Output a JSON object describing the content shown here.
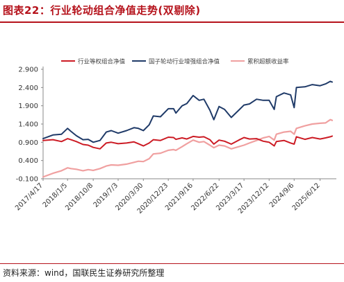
{
  "figure": {
    "title": "图表22：行业轮动组合净值走势(双剔除)",
    "source": "资料来源：wind，国联民生证券研究所整理"
  },
  "colors": {
    "title": "#b5121b",
    "rule": "#b5121b",
    "benchmark": "#cc1b24",
    "strategy": "#1f3a68",
    "excess": "#f0a0a0"
  },
  "chart_data": {
    "type": "line",
    "title": "",
    "xlabel": "",
    "ylabel": "",
    "ylim": [
      -0.1,
      2.9
    ],
    "yticks": [
      "-0.100",
      "0.400",
      "0.900",
      "1.400",
      "1.900",
      "2.400",
      "2.900"
    ],
    "grid": false,
    "legend_position": "top",
    "x_tick_labels": [
      "2017/4/17",
      "2018/1/5",
      "2018/10/8",
      "2019/7/3",
      "2020/3/30",
      "2020/12/23",
      "2021/9/16",
      "2022/6/22",
      "2023/3/17",
      "2023/12/12",
      "2024/9/6",
      "2025/6/12"
    ],
    "x": [
      "2017/4/17",
      "2017/8/1",
      "2017/11/1",
      "2018/1/5",
      "2018/2/10",
      "2018/4/10",
      "2018/6/20",
      "2018/8/15",
      "2018/10/8",
      "2018/12/20",
      "2019/2/25",
      "2019/4/20",
      "2019/7/3",
      "2019/10/1",
      "2019/12/20",
      "2020/2/5",
      "2020/3/30",
      "2020/6/1",
      "2020/7/15",
      "2020/9/30",
      "2020/12/23",
      "2021/2/18",
      "2021/3/15",
      "2021/5/20",
      "2021/7/10",
      "2021/9/16",
      "2021/11/20",
      "2022/1/10",
      "2022/3/15",
      "2022/4/27",
      "2022/6/22",
      "2022/8/20",
      "2022/10/31",
      "2023/1/20",
      "2023/3/17",
      "2023/5/15",
      "2023/7/30",
      "2023/10/10",
      "2023/12/12",
      "2024/2/5",
      "2024/2/28",
      "2024/5/20",
      "2024/7/30",
      "2024/9/6",
      "2024/9/30",
      "2024/12/31",
      "2025/3/20",
      "2025/6/12",
      "2025/8/10",
      "2025/9/30",
      "2025/10/20"
    ],
    "series": [
      {
        "name": "行业等权组合净值",
        "color": "#cc1b24",
        "values": [
          0.95,
          0.97,
          0.92,
          1.0,
          0.97,
          0.92,
          0.84,
          0.82,
          0.76,
          0.72,
          0.88,
          0.9,
          0.86,
          0.88,
          0.91,
          0.86,
          0.8,
          0.88,
          0.97,
          0.95,
          1.04,
          1.03,
          0.98,
          1.02,
          0.99,
          1.06,
          1.04,
          1.05,
          0.97,
          0.85,
          0.96,
          0.93,
          0.85,
          0.96,
          1.03,
          0.99,
          1.0,
          0.93,
          0.9,
          0.8,
          0.92,
          0.95,
          0.88,
          0.85,
          1.05,
          0.98,
          1.03,
          0.99,
          1.02,
          1.05,
          1.07
        ]
      },
      {
        "name": "国子轮动行业增强组合净值",
        "color": "#1f3a68",
        "values": [
          1.0,
          1.1,
          1.12,
          1.28,
          1.2,
          1.08,
          0.97,
          0.98,
          0.9,
          0.95,
          1.18,
          1.22,
          1.15,
          1.22,
          1.3,
          1.28,
          1.22,
          1.38,
          1.62,
          1.6,
          1.82,
          1.82,
          1.7,
          1.9,
          1.96,
          2.18,
          2.05,
          2.08,
          1.78,
          1.52,
          1.88,
          1.8,
          1.58,
          1.78,
          1.92,
          1.95,
          2.08,
          2.05,
          2.05,
          1.8,
          2.15,
          2.25,
          2.2,
          1.85,
          2.4,
          2.42,
          2.48,
          2.45,
          2.5,
          2.57,
          2.55
        ]
      },
      {
        "name": "累积超额收益率",
        "color": "#f0a0a0",
        "values": [
          -0.05,
          0.05,
          0.12,
          0.2,
          0.18,
          0.16,
          0.12,
          0.15,
          0.13,
          0.18,
          0.25,
          0.28,
          0.27,
          0.3,
          0.35,
          0.38,
          0.37,
          0.45,
          0.58,
          0.6,
          0.68,
          0.7,
          0.68,
          0.78,
          0.86,
          0.96,
          0.9,
          0.92,
          0.82,
          0.75,
          0.82,
          0.8,
          0.72,
          0.78,
          0.82,
          0.88,
          0.95,
          1.02,
          1.06,
          0.96,
          1.12,
          1.18,
          1.2,
          1.12,
          1.28,
          1.35,
          1.4,
          1.42,
          1.43,
          1.52,
          1.5
        ]
      }
    ]
  }
}
